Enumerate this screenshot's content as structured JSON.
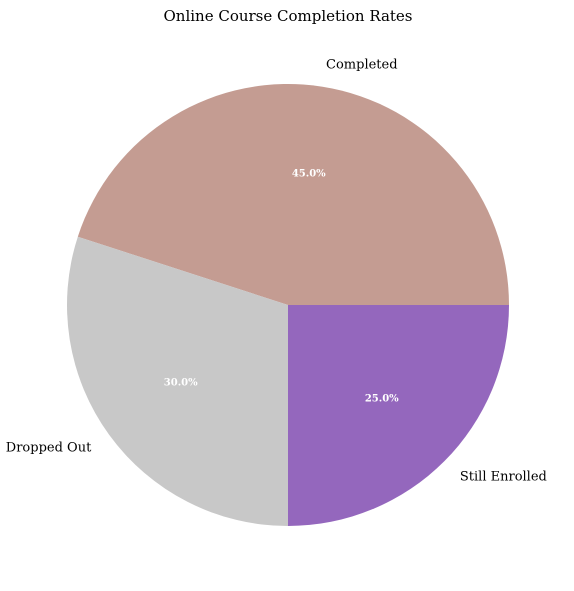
{
  "chart_data": {
    "type": "pie",
    "title": "Online Course Completion Rates",
    "categories": [
      "Completed",
      "Dropped Out",
      "Still Enrolled"
    ],
    "values": [
      45,
      30,
      25
    ],
    "percent_labels": [
      "45.0%",
      "30.0%",
      "25.0%"
    ],
    "colors": [
      "#c49c92",
      "#c8c8c8",
      "#9467bd"
    ],
    "start_angle_deg": 0,
    "direction": "counterclockwise",
    "legend": "none"
  }
}
